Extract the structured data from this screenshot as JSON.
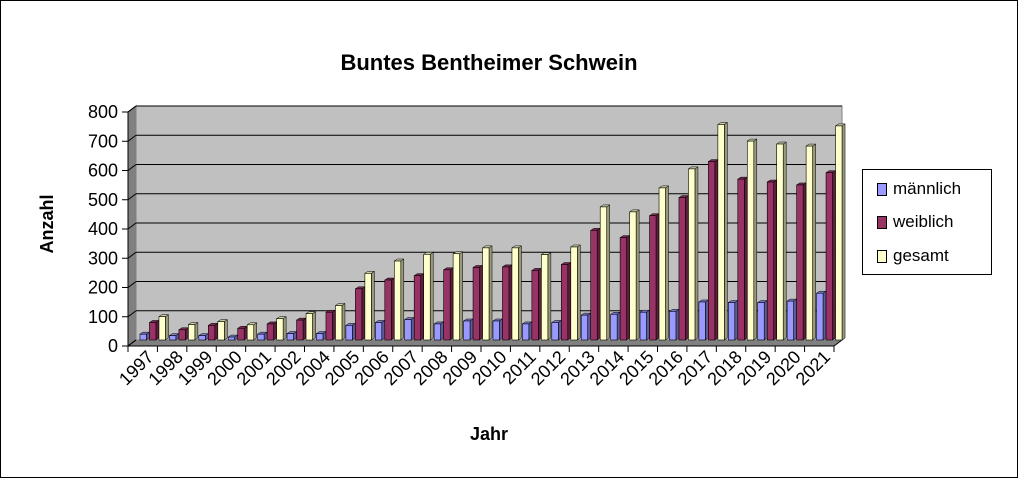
{
  "chart_data": {
    "type": "bar",
    "title": "Buntes Bentheimer Schwein",
    "xlabel": "Jahr",
    "ylabel": "Anzahl",
    "ylim": [
      0,
      800
    ],
    "yticks": [
      0,
      100,
      200,
      300,
      400,
      500,
      600,
      700,
      800
    ],
    "grid": true,
    "legend_position": "right",
    "plot_background": "#c0c0c0",
    "categories": [
      "1997",
      "1998",
      "1999",
      "2000",
      "2001",
      "2002",
      "2004",
      "2005",
      "2006",
      "2007",
      "2008",
      "2009",
      "2010",
      "2011",
      "2012",
      "2013",
      "2014",
      "2015",
      "2016",
      "2017",
      "2018",
      "2019",
      "2020",
      "2021"
    ],
    "series": [
      {
        "name": "männlich",
        "color": "#9999ff",
        "values": [
          20,
          15,
          15,
          10,
          20,
          22,
          22,
          50,
          60,
          70,
          55,
          65,
          65,
          55,
          60,
          85,
          88,
          95,
          98,
          130,
          128,
          128,
          133,
          160
        ]
      },
      {
        "name": "weiblich",
        "color": "#993366",
        "values": [
          60,
          35,
          50,
          40,
          55,
          68,
          95,
          175,
          205,
          220,
          240,
          248,
          250,
          238,
          258,
          375,
          350,
          425,
          487,
          610,
          550,
          540,
          530,
          572
        ]
      },
      {
        "name": "gesamt",
        "color": "#ffffcc",
        "values": [
          80,
          53,
          63,
          52,
          73,
          90,
          118,
          228,
          270,
          293,
          295,
          315,
          315,
          292,
          318,
          455,
          438,
          520,
          585,
          737,
          680,
          670,
          663,
          732
        ]
      }
    ]
  }
}
